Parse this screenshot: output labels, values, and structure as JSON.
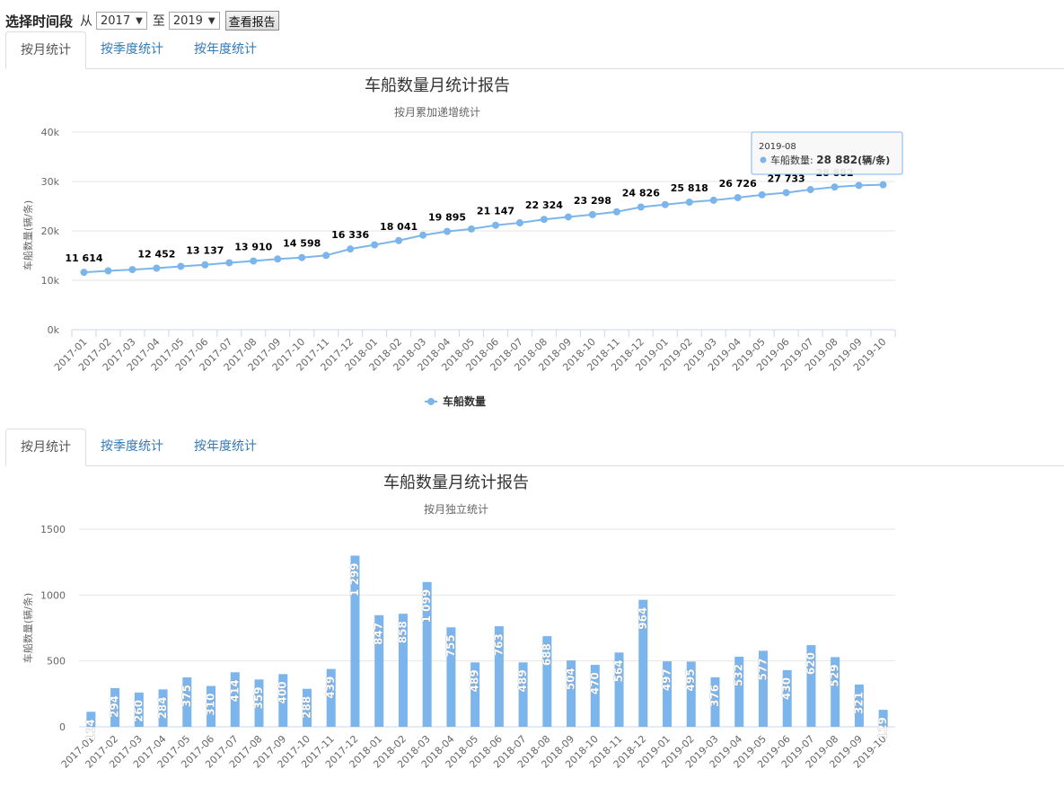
{
  "toolbar": {
    "title": "选择时间段",
    "from_label": "从",
    "from_value": "2017",
    "to_label": "至",
    "to_value": "2019",
    "view_button": "查看报告"
  },
  "tabs_top": [
    "按月统计",
    "按季度统计",
    "按年度统计"
  ],
  "tabs_bottom": [
    "按月统计",
    "按季度统计",
    "按年度统计"
  ],
  "colors": {
    "series": "#7cb5ec",
    "tab_link": "#337ab7"
  },
  "tooltip": {
    "date": "2019-08",
    "label": "车船数量:",
    "value": "28 882",
    "unit": "(辆/条)"
  },
  "chart_data": [
    {
      "type": "line",
      "title": "车船数量月统计报告",
      "subtitle": "按月累加递增统计",
      "ylabel": "车船数量(辆/条)",
      "ylim": [
        0,
        40000
      ],
      "yticks": [
        "0k",
        "10k",
        "20k",
        "30k",
        "40k"
      ],
      "legend": "车船数量",
      "legend_position": "bottom-center",
      "categories": [
        "2017-01",
        "2017-02",
        "2017-03",
        "2017-04",
        "2017-05",
        "2017-06",
        "2017-07",
        "2017-08",
        "2017-09",
        "2017-10",
        "2017-11",
        "2017-12",
        "2018-01",
        "2018-02",
        "2018-03",
        "2018-04",
        "2018-05",
        "2018-06",
        "2018-07",
        "2018-08",
        "2018-09",
        "2018-10",
        "2018-11",
        "2018-12",
        "2019-01",
        "2019-02",
        "2019-03",
        "2019-04",
        "2019-05",
        "2019-06",
        "2019-07",
        "2019-08",
        "2019-09",
        "2019-10"
      ],
      "values": [
        11614,
        11908,
        12168,
        12452,
        12827,
        13137,
        13551,
        13910,
        14310,
        14598,
        15037,
        16336,
        17183,
        18041,
        19140,
        19895,
        20384,
        21147,
        21636,
        22324,
        22828,
        23298,
        23862,
        24826,
        25323,
        25818,
        26194,
        26726,
        27303,
        27733,
        28353,
        28882,
        29203,
        29332
      ],
      "labels_shown": [
        "11 614",
        "",
        "",
        "12 452",
        "",
        "13 137",
        "",
        "13 910",
        "",
        "14 598",
        "",
        "16 336",
        "",
        "18 041",
        "",
        "19 895",
        "",
        "21 147",
        "",
        "22 324",
        "",
        "23 298",
        "",
        "24 826",
        "",
        "25 818",
        "",
        "26 726",
        "",
        "27 733",
        "",
        "28 882",
        "",
        ""
      ]
    },
    {
      "type": "bar",
      "title": "车船数量月统计报告",
      "subtitle": "按月独立统计",
      "ylabel": "车船数量(辆/条)",
      "ylim": [
        0,
        1500
      ],
      "yticks": [
        "0",
        "500",
        "1000",
        "1500"
      ],
      "categories": [
        "2017-01",
        "2017-02",
        "2017-03",
        "2017-04",
        "2017-05",
        "2017-06",
        "2017-07",
        "2017-08",
        "2017-09",
        "2017-10",
        "2017-11",
        "2017-12",
        "2018-01",
        "2018-02",
        "2018-03",
        "2018-04",
        "2018-05",
        "2018-06",
        "2018-07",
        "2018-08",
        "2018-09",
        "2018-10",
        "2018-11",
        "2018-12",
        "2019-01",
        "2019-02",
        "2019-03",
        "2019-04",
        "2019-05",
        "2019-06",
        "2019-07",
        "2019-08",
        "2019-09",
        "2019-10"
      ],
      "values": [
        114,
        294,
        260,
        284,
        375,
        310,
        414,
        359,
        400,
        288,
        439,
        1299,
        847,
        858,
        1099,
        755,
        489,
        763,
        489,
        688,
        504,
        470,
        564,
        964,
        497,
        495,
        376,
        532,
        577,
        430,
        620,
        529,
        321,
        129
      ],
      "labels_shown": [
        "114",
        "294",
        "260",
        "284",
        "375",
        "310",
        "414",
        "359",
        "400",
        "288",
        "439",
        "1 299",
        "847",
        "858",
        "1 099",
        "755",
        "489",
        "763",
        "489",
        "688",
        "504",
        "470",
        "564",
        "964",
        "497",
        "495",
        "376",
        "532",
        "577",
        "430",
        "620",
        "529",
        "321",
        "129"
      ]
    }
  ]
}
